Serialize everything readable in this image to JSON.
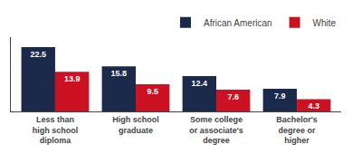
{
  "chart_data": {
    "type": "bar",
    "categories": [
      "Less than\nhigh school\ndiploma",
      "High school\ngraduate",
      "Some college\nor associate's\ndegree",
      "Bachelor's\ndegree or\nhigher"
    ],
    "series": [
      {
        "name": "African American",
        "color": "#1b2a4a",
        "values": [
          22.5,
          15.8,
          12.4,
          7.9
        ]
      },
      {
        "name": "White",
        "color": "#cc1122",
        "values": [
          13.9,
          9.5,
          7.6,
          4.3
        ]
      }
    ],
    "ylim": [
      0,
      26
    ],
    "tick_labels": "x",
    "data_labels": true,
    "grid": false,
    "legend": "upper right"
  }
}
